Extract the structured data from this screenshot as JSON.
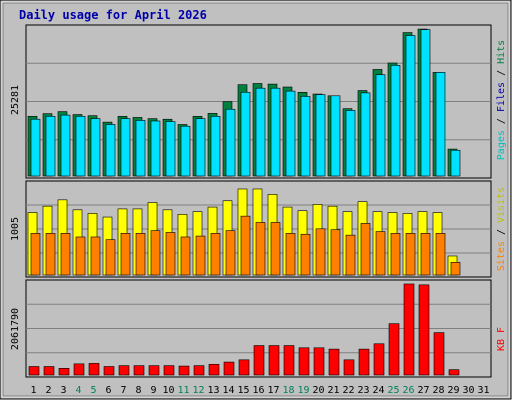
{
  "title": "Daily usage for April 2026",
  "colors": {
    "hits": "#008040",
    "files": "#00e0ff",
    "pages": "#00c0c0",
    "visits": "#ffff00",
    "sites": "#ff8000",
    "kbytes": "#ff0000",
    "weekend_day": "#00805c",
    "weekday": "#000000",
    "panel_bg": "#c0c0c0",
    "frame_bg": "#c0c0c0",
    "title": "#0000aa",
    "ymax_label": "#000000"
  },
  "chart_data": [
    {
      "type": "bar",
      "panel": "hits-files-pages",
      "categories": [
        "1",
        "2",
        "3",
        "4",
        "5",
        "6",
        "7",
        "8",
        "9",
        "10",
        "11",
        "12",
        "13",
        "14",
        "15",
        "16",
        "17",
        "18",
        "19",
        "20",
        "21",
        "22",
        "23",
        "24",
        "25",
        "26",
        "27",
        "28",
        "29",
        "30",
        "31"
      ],
      "weekend_days": [
        "4",
        "5",
        "11",
        "12",
        "18",
        "19",
        "25",
        "26"
      ],
      "ymax_label": "25281",
      "ylim": [
        0,
        25281
      ],
      "legend": [
        "Hits",
        "Files",
        "Pages"
      ],
      "series": [
        {
          "name": "Hits",
          "values": [
            10200,
            10650,
            11000,
            10500,
            10300,
            9200,
            10200,
            10000,
            9800,
            9700,
            8800,
            10200,
            10700,
            12700,
            15600,
            15800,
            15700,
            15200,
            14300,
            14000,
            13700,
            11500,
            14600,
            18200,
            19300,
            24500,
            25100,
            17700,
            4600,
            0,
            0
          ]
        },
        {
          "name": "Files",
          "values": [
            9700,
            10200,
            10400,
            10200,
            9800,
            8800,
            9800,
            9500,
            9400,
            9300,
            8500,
            9800,
            10200,
            11400,
            14300,
            15000,
            15000,
            14500,
            13600,
            13900,
            13700,
            11200,
            14200,
            17300,
            18900,
            24000,
            25000,
            17700,
            4400,
            0,
            0
          ]
        }
      ]
    },
    {
      "type": "bar",
      "panel": "sites-visits",
      "categories": [
        "1",
        "2",
        "3",
        "4",
        "5",
        "6",
        "7",
        "8",
        "9",
        "10",
        "11",
        "12",
        "13",
        "14",
        "15",
        "16",
        "17",
        "18",
        "19",
        "20",
        "21",
        "22",
        "23",
        "24",
        "25",
        "26",
        "27",
        "28",
        "29",
        "30",
        "31"
      ],
      "ymax_label": "1005",
      "ylim": [
        0,
        1005
      ],
      "legend": [
        "Sites",
        "Visits"
      ],
      "series": [
        {
          "name": "Visits",
          "values": [
            690,
            760,
            830,
            720,
            680,
            640,
            730,
            730,
            800,
            720,
            670,
            700,
            750,
            820,
            950,
            950,
            890,
            750,
            710,
            780,
            760,
            700,
            810,
            700,
            690,
            680,
            700,
            690,
            210,
            0,
            0
          ]
        },
        {
          "name": "Sites",
          "values": [
            460,
            460,
            460,
            420,
            420,
            390,
            460,
            460,
            490,
            470,
            420,
            430,
            460,
            490,
            650,
            580,
            580,
            460,
            450,
            510,
            500,
            440,
            570,
            480,
            460,
            460,
            460,
            460,
            140,
            0,
            0
          ]
        }
      ]
    },
    {
      "type": "bar",
      "panel": "kbytes",
      "categories": [
        "1",
        "2",
        "3",
        "4",
        "5",
        "6",
        "7",
        "8",
        "9",
        "10",
        "11",
        "12",
        "13",
        "14",
        "15",
        "16",
        "17",
        "18",
        "19",
        "20",
        "21",
        "22",
        "23",
        "24",
        "25",
        "26",
        "27",
        "28",
        "29",
        "30",
        "31"
      ],
      "ymax_label": "2061790",
      "ylim": [
        0,
        2061790
      ],
      "legend": [
        "KB F"
      ],
      "series": [
        {
          "name": "KB F",
          "values": [
            190000,
            190000,
            150000,
            250000,
            260000,
            190000,
            210000,
            210000,
            210000,
            210000,
            200000,
            210000,
            240000,
            290000,
            340000,
            660000,
            660000,
            660000,
            610000,
            610000,
            580000,
            340000,
            580000,
            700000,
            1150000,
            2040000,
            2020000,
            950000,
            120000,
            0,
            0
          ]
        }
      ]
    }
  ]
}
